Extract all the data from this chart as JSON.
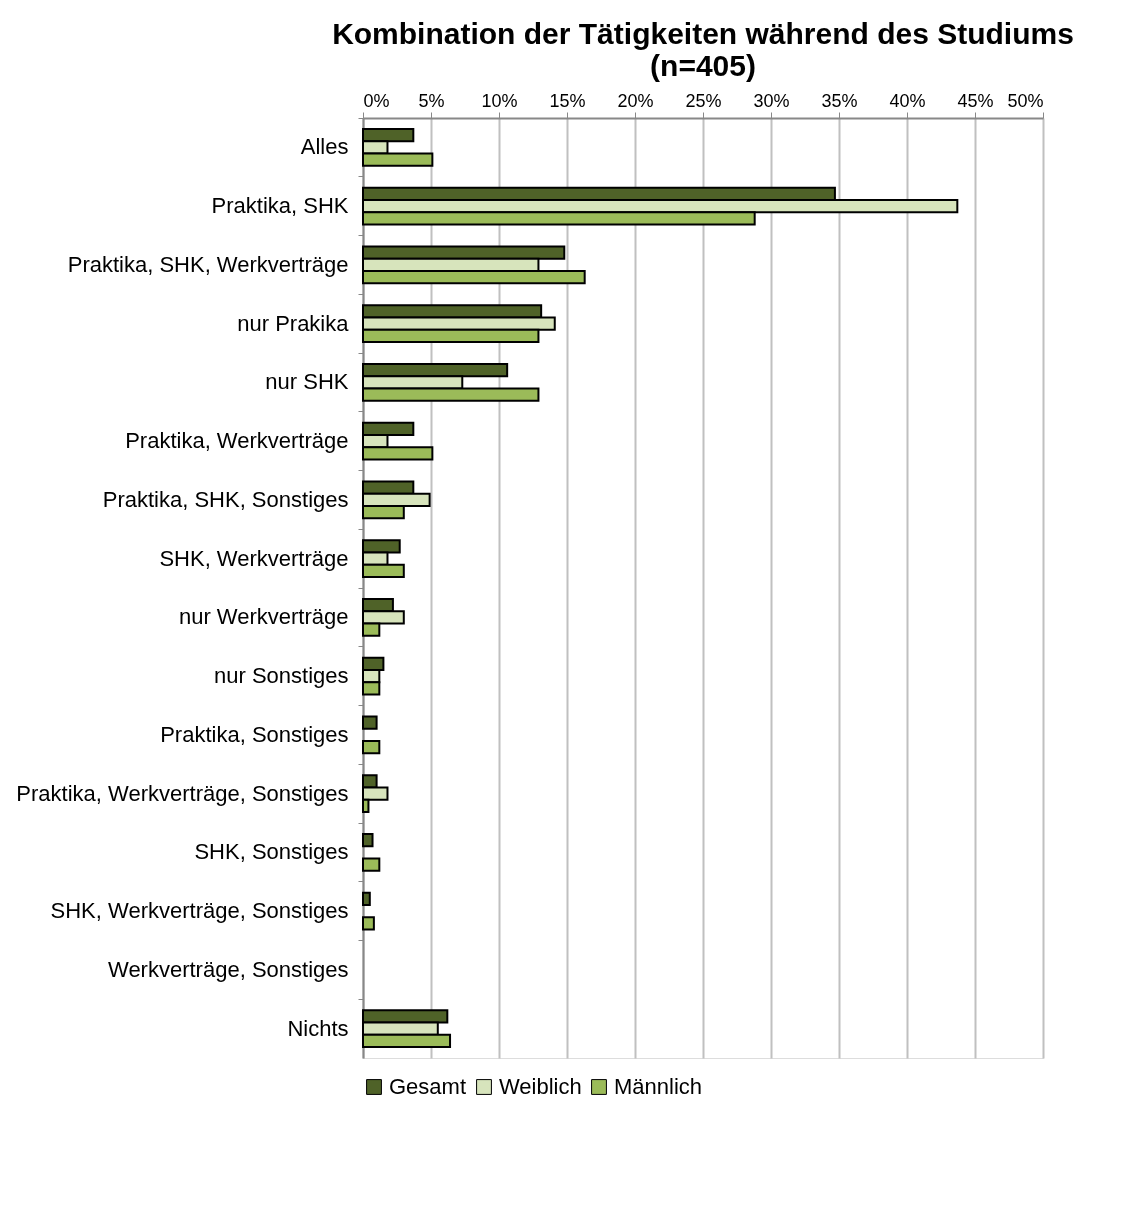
{
  "chart_data": {
    "type": "bar",
    "orientation": "horizontal",
    "title": "Kombination der Tätigkeiten während des Studiums\n(n=405)",
    "categories": [
      "Alles",
      "Praktika, SHK",
      "Praktika, SHK, Werkverträge",
      "nur Prakika",
      "nur SHK",
      "Praktika, Werkverträge",
      "Praktika, SHK, Sonstiges",
      "SHK, Werkverträge",
      "nur Werkverträge",
      "nur Sonstiges",
      "Praktika, Sonstiges",
      "Praktika, Werkverträge, Sonstiges",
      "SHK, Sonstiges",
      "SHK, Werkverträge, Sonstiges",
      "Werkverträge, Sonstiges",
      "Nichts"
    ],
    "series": [
      {
        "name": "Gesamt",
        "color": "#4f6228",
        "values": [
          3.7,
          34.7,
          14.8,
          13.1,
          10.6,
          3.7,
          3.7,
          2.7,
          2.2,
          1.5,
          1.0,
          1.0,
          0.7,
          0.5,
          null,
          6.2
        ]
      },
      {
        "name": "Weiblich",
        "color": "#d7e4bc",
        "values": [
          1.8,
          43.7,
          12.9,
          14.1,
          7.3,
          1.8,
          4.9,
          1.8,
          3.0,
          1.2,
          null,
          1.8,
          null,
          null,
          null,
          5.5
        ]
      },
      {
        "name": "Männlich",
        "color": "#9bbb59",
        "values": [
          5.1,
          28.8,
          16.3,
          12.9,
          12.9,
          5.1,
          3.0,
          3.0,
          1.2,
          1.2,
          1.2,
          0.4,
          1.2,
          0.8,
          null,
          6.4
        ]
      }
    ],
    "xlim": [
      0,
      50
    ],
    "xticks": [
      {
        "value": 0,
        "label": "0%"
      },
      {
        "value": 5,
        "label": "5%"
      },
      {
        "value": 10,
        "label": "10%"
      },
      {
        "value": 15,
        "label": "15%"
      },
      {
        "value": 20,
        "label": "20%"
      },
      {
        "value": 25,
        "label": "25%"
      },
      {
        "value": 30,
        "label": "30%"
      },
      {
        "value": 35,
        "label": "35%"
      },
      {
        "value": 40,
        "label": "40%"
      },
      {
        "value": 45,
        "label": "45%"
      },
      {
        "value": 50,
        "label": "50%"
      }
    ],
    "grid": "x",
    "legend": "bottom"
  }
}
